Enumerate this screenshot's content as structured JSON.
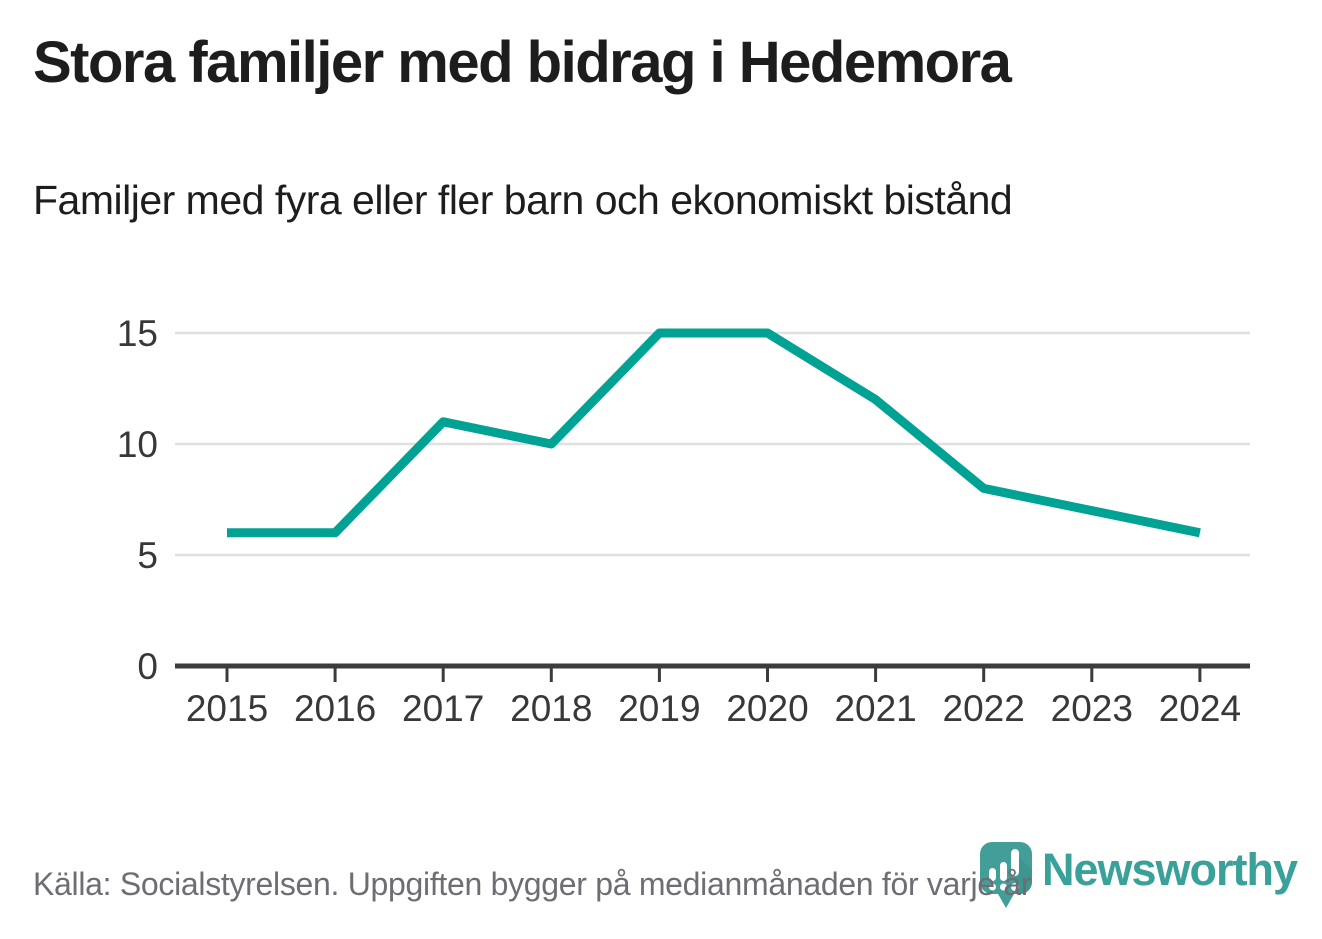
{
  "header": {
    "title": "Stora familjer med bidrag i Hedemora",
    "subtitle": "Familjer med fyra eller fler barn och ekonomiskt bistånd"
  },
  "footer": {
    "source": "Källa: Socialstyrelsen. Uppgiften bygger på medianmånaden för varje år",
    "brand": "Newsworthy"
  },
  "colors": {
    "line": "#00a294",
    "brand_teal": "#3aa09a",
    "logo_fill": "#449e98",
    "logo_shadow": "#38908b",
    "grid": "#e0e0e0",
    "axis": "#3c3c3c",
    "tick_label": "#383838",
    "title_text": "#1d1d1d",
    "source_text": "#6d6d74"
  },
  "chart_data": {
    "type": "line",
    "title": "Stora familjer med bidrag i Hedemora",
    "subtitle": "Familjer med fyra eller fler barn och ekonomiskt bistånd",
    "categories": [
      "2015",
      "2016",
      "2017",
      "2018",
      "2019",
      "2020",
      "2021",
      "2022",
      "2023",
      "2024"
    ],
    "values": [
      6,
      6,
      11,
      10,
      15,
      15,
      12,
      8,
      7,
      6
    ],
    "yticks": [
      0,
      5,
      10,
      15
    ],
    "ytick_labels": [
      "0",
      "5",
      "10",
      "15"
    ],
    "ylim": [
      0,
      16.8
    ],
    "xlabel": "",
    "ylabel": "",
    "grid": true,
    "legend": false,
    "source": "Källa: Socialstyrelsen. Uppgiften bygger på medianmånaden för varje år"
  }
}
